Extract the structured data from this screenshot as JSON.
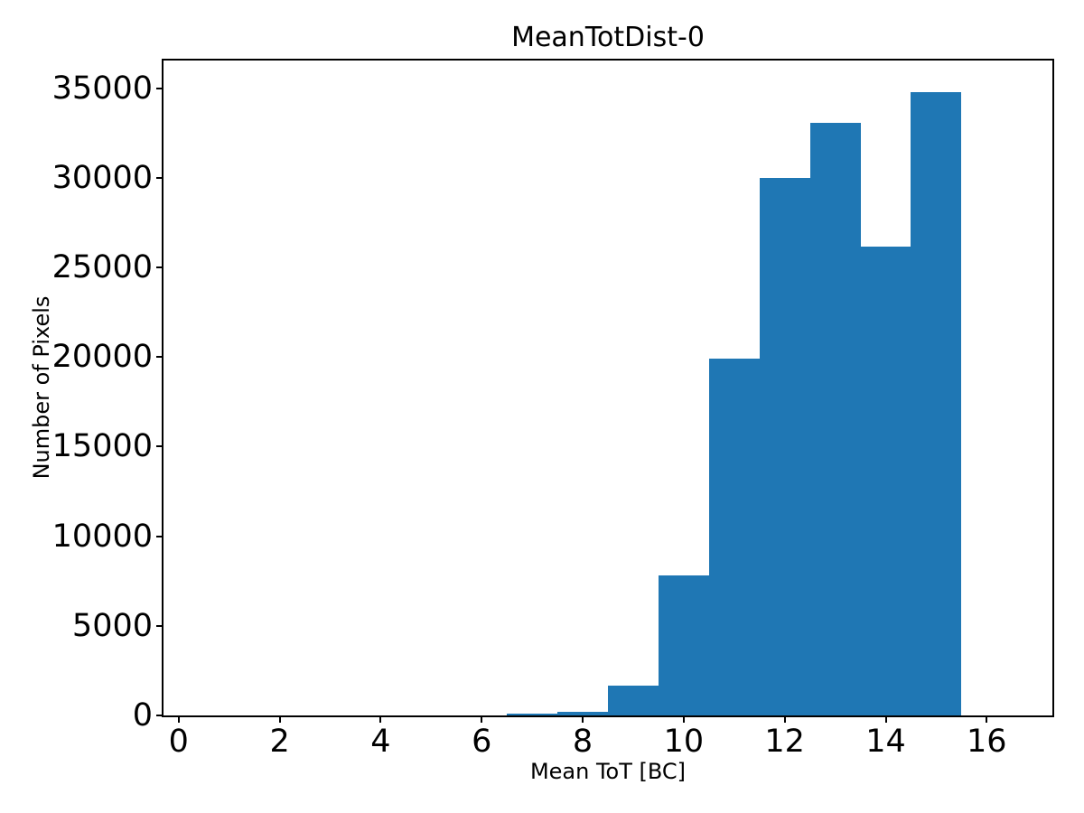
{
  "figure": {
    "background": "#ffffff",
    "text_color": "#000000"
  },
  "chart_data": {
    "type": "bar",
    "subtype": "histogram",
    "title": "MeanTotDist-0",
    "xlabel": "Mean ToT [BC]",
    "ylabel": "Number of Pixels",
    "bar_color": "#1f77b4",
    "bin_edges": [
      6.5,
      7.5,
      8.5,
      9.5,
      10.5,
      11.5,
      12.5,
      13.5,
      14.5,
      15.5
    ],
    "bin_centers": [
      7,
      8,
      9,
      10,
      11,
      12,
      13,
      14,
      15
    ],
    "values": [
      100,
      190,
      1650,
      7800,
      19900,
      30000,
      33050,
      26150,
      34800
    ],
    "xlim": [
      -0.3,
      17.3
    ],
    "ylim": [
      0,
      36550
    ],
    "xticks": [
      0,
      2,
      4,
      6,
      8,
      10,
      12,
      14,
      16
    ],
    "yticks": [
      0,
      5000,
      10000,
      15000,
      20000,
      25000,
      30000,
      35000
    ],
    "grid": false,
    "legend": null
  }
}
